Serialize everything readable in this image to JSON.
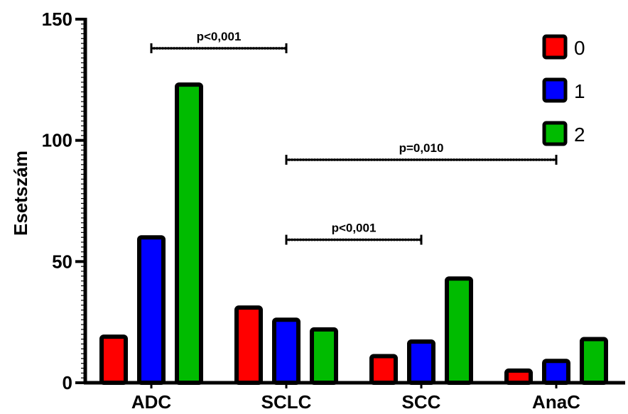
{
  "chart_data": {
    "type": "bar",
    "title": "",
    "xlabel": "",
    "ylabel": "Esetszám",
    "ylim": [
      0,
      150
    ],
    "yticks": [
      0,
      50,
      100,
      150
    ],
    "categories": [
      "ADC",
      "SCLC",
      "SCC",
      "AnaC"
    ],
    "series": [
      {
        "name": "0",
        "color": "#ff0000",
        "values": [
          19,
          31,
          11,
          5
        ]
      },
      {
        "name": "1",
        "color": "#0000ff",
        "values": [
          60,
          26,
          17,
          9
        ]
      },
      {
        "name": "2",
        "color": "#00bb00",
        "values": [
          123,
          22,
          43,
          18
        ]
      }
    ],
    "legend_position": "top-right",
    "grid": false,
    "annotations": [
      {
        "label": "p<0,001",
        "from": "ADC",
        "to": "SCLC",
        "y": 138
      },
      {
        "label": "p=0,010",
        "from": "SCLC",
        "to": "AnaC",
        "y": 92
      },
      {
        "label": "p<0,001",
        "from": "SCLC",
        "to": "SCC",
        "y": 59
      }
    ]
  }
}
